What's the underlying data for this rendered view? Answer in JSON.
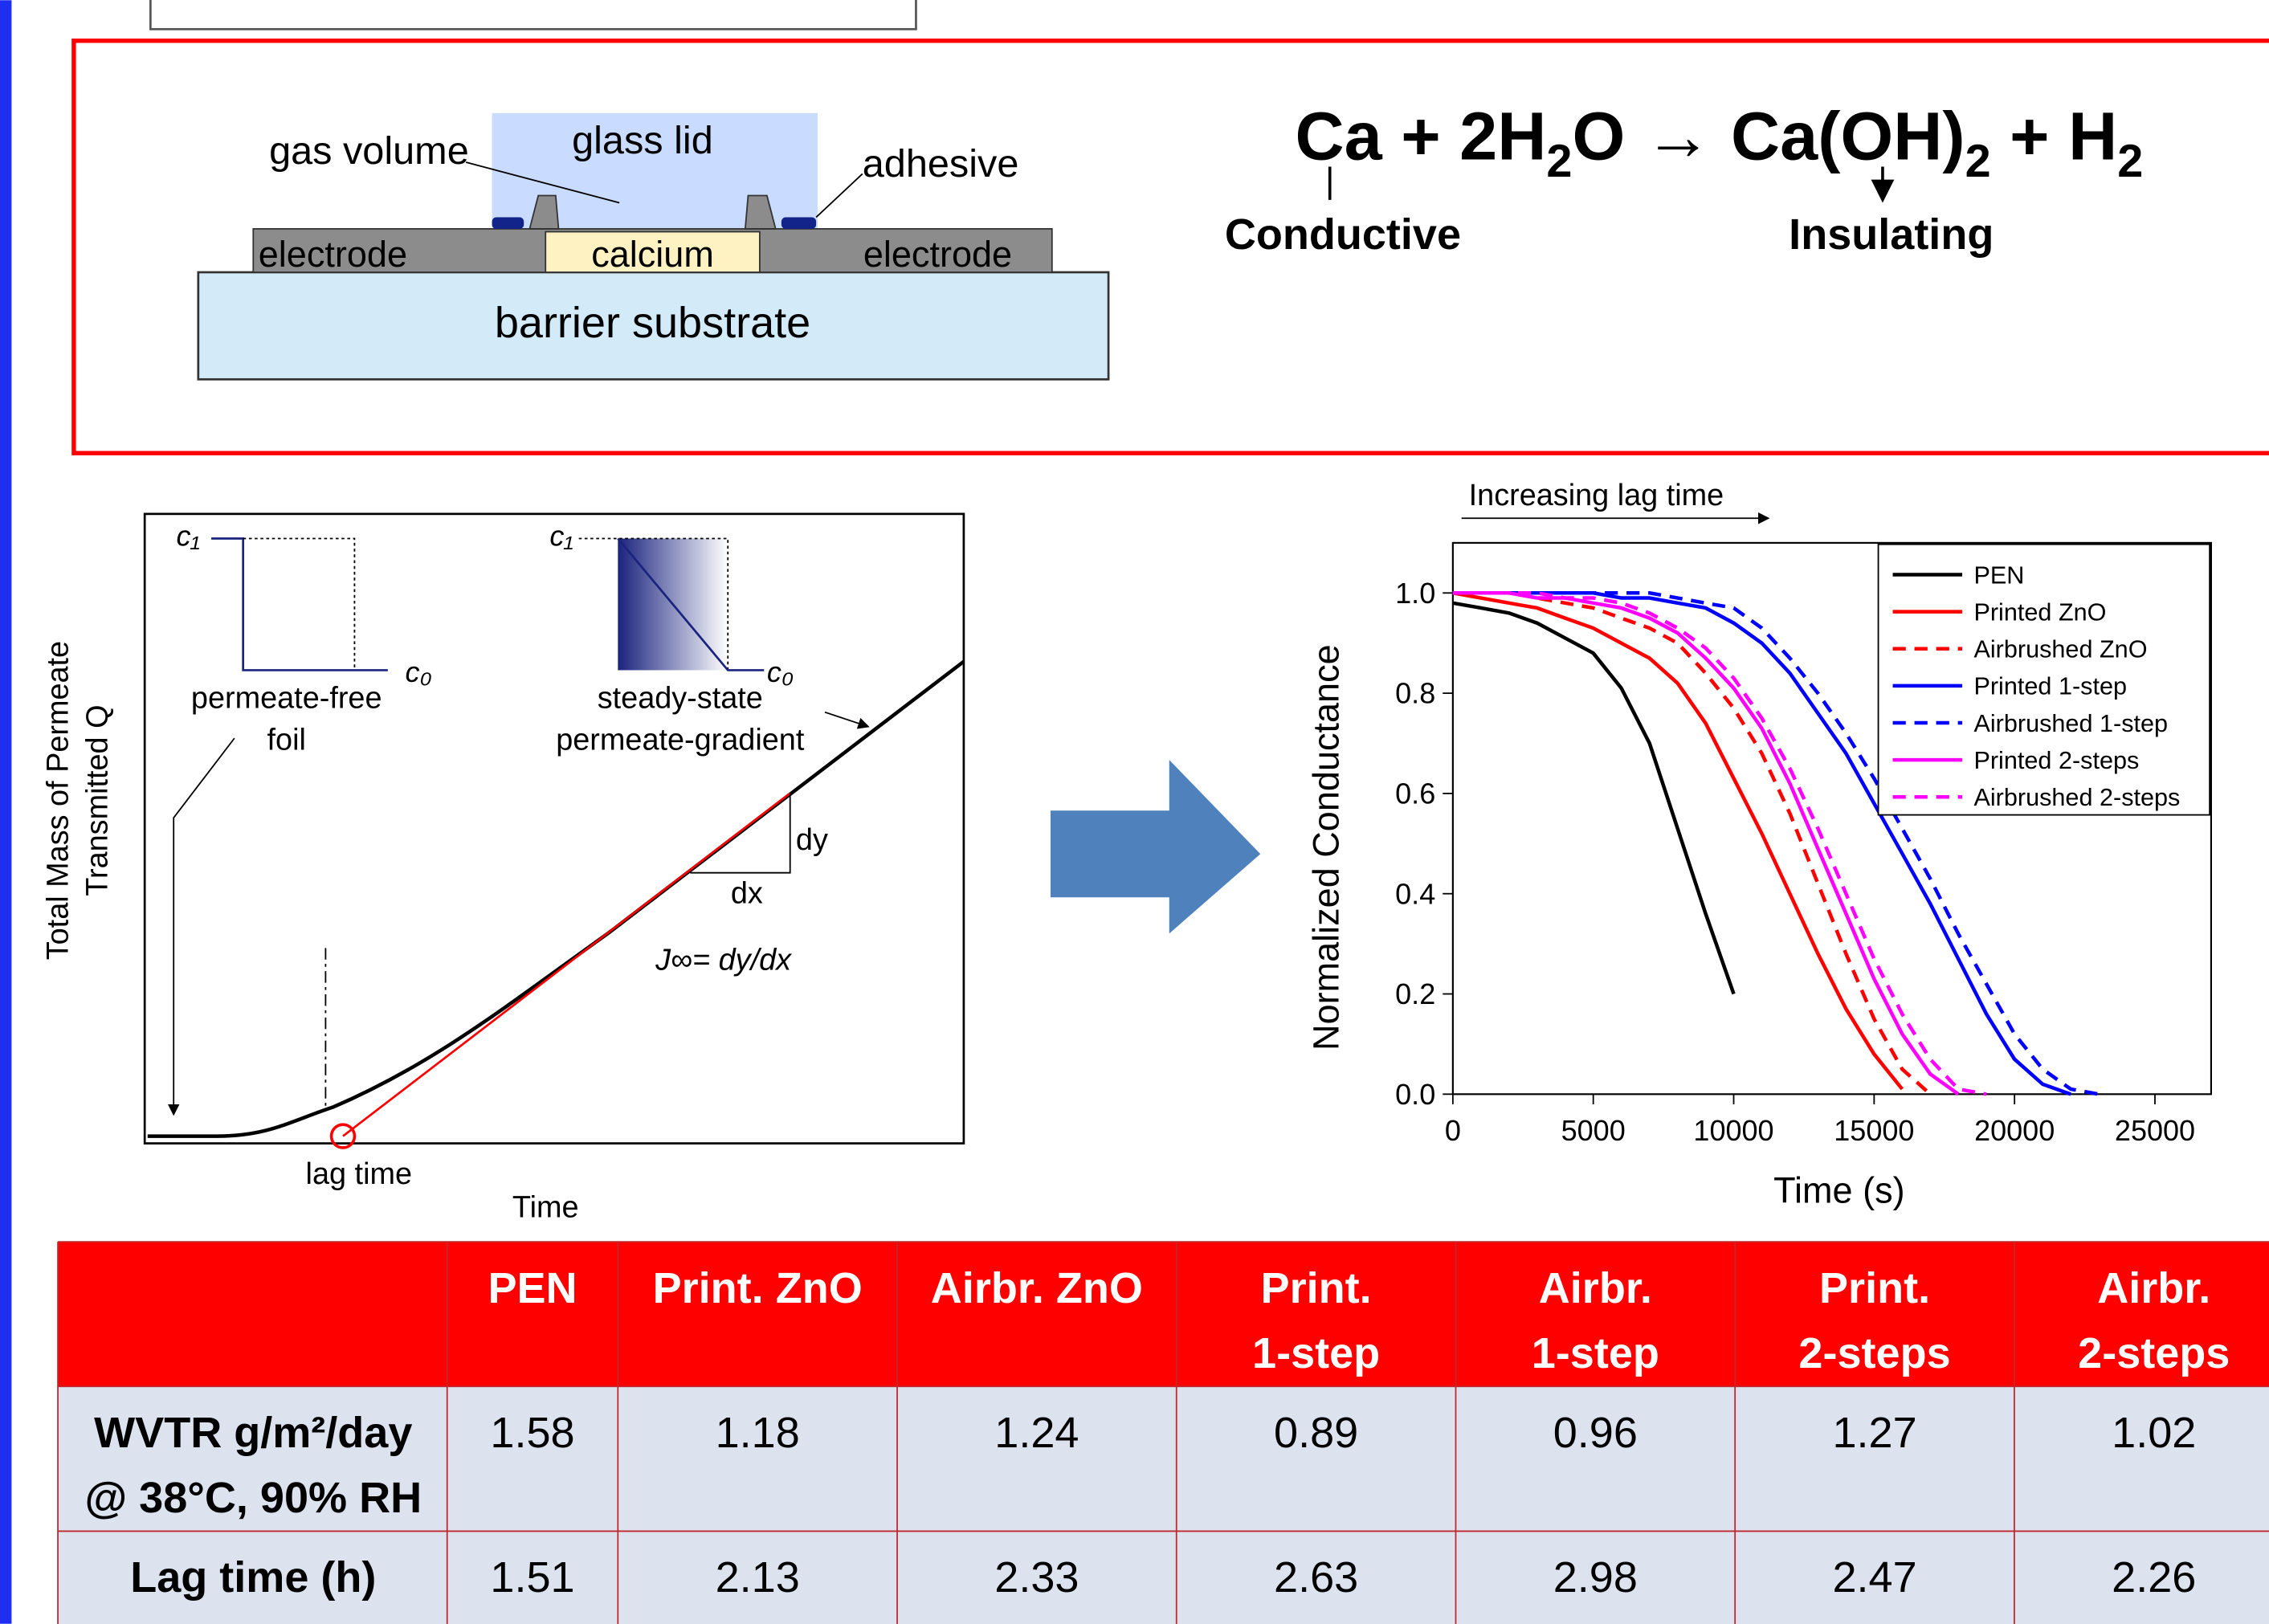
{
  "device_diagram": {
    "gas_volume": "gas volume",
    "glass_lid": "glass lid",
    "adhesive": "adhesive",
    "electrode_left": "electrode",
    "calcium": "calcium",
    "electrode_right": "electrode",
    "substrate": "barrier substrate"
  },
  "reaction": {
    "parts": [
      "Ca + 2H",
      "2",
      "O → Ca(OH)",
      "2",
      " + H",
      "2"
    ],
    "conductive": "Conductive",
    "insulating": "Insulating"
  },
  "lag_diagram": {
    "y_label": [
      "Total Mass of Permeate",
      "Transmitted Q"
    ],
    "x_label": "Time",
    "c1_left": "c₁",
    "c0_left": "c₀",
    "c1_right": "c₁",
    "c0_right": "c₀",
    "foil_label": [
      "permeate-free",
      "foil"
    ],
    "gradient_label": [
      "steady-state",
      "permeate-gradient"
    ],
    "dy": "dy",
    "dx": "dx",
    "flux": "J∞= dy/dx",
    "lag_time": "lag time"
  },
  "chart_data": {
    "type": "line",
    "annotation": "Increasing lag time",
    "xlabel": "Time (s)",
    "ylabel": "Normalized Conductance",
    "x": [
      0,
      1000,
      2000,
      3000,
      4000,
      5000,
      6000,
      7000,
      8000,
      9000,
      10000,
      11000,
      12000,
      13000,
      14000,
      15000,
      16000,
      17000,
      18000,
      19000,
      20000,
      21000,
      22000,
      23000
    ],
    "xlim": [
      0,
      27000
    ],
    "xticks": [
      0,
      5000,
      10000,
      15000,
      20000,
      25000
    ],
    "ylim": [
      0,
      1.1
    ],
    "yticks": [
      {
        "value": 0,
        "label": "0.0"
      },
      {
        "value": 0.2,
        "label": "0.2"
      },
      {
        "value": 0.4,
        "label": "0.4"
      },
      {
        "value": 0.6,
        "label": "0.6"
      },
      {
        "value": 0.8,
        "label": "0.8"
      },
      {
        "value": 1,
        "label": "1.0"
      }
    ],
    "legend": "top-right",
    "series": [
      {
        "name": "PEN",
        "color": "#000000",
        "style": "solid",
        "values": [
          0.98,
          0.97,
          0.96,
          0.94,
          0.91,
          0.88,
          0.81,
          0.7,
          0.53,
          0.36,
          0.2,
          null,
          null,
          null,
          null,
          null,
          null,
          null,
          null,
          null,
          null,
          null,
          null,
          null
        ]
      },
      {
        "name": "Printed ZnO",
        "color": "#ff0000",
        "style": "solid",
        "values": [
          1.0,
          0.99,
          0.98,
          0.97,
          0.95,
          0.93,
          0.9,
          0.87,
          0.82,
          0.74,
          0.63,
          0.52,
          0.4,
          0.28,
          0.17,
          0.08,
          0.01,
          null,
          null,
          null,
          null,
          null,
          null,
          null
        ]
      },
      {
        "name": "Airbrushed ZnO",
        "color": "#ff0000",
        "style": "dashed",
        "values": [
          1.0,
          1.0,
          1.0,
          0.99,
          0.98,
          0.97,
          0.95,
          0.93,
          0.9,
          0.84,
          0.77,
          0.68,
          0.56,
          0.42,
          0.28,
          0.15,
          0.05,
          0.0,
          null,
          null,
          null,
          null,
          null,
          null
        ]
      },
      {
        "name": "Printed 1-step",
        "color": "#0000ff",
        "style": "solid",
        "values": [
          1.0,
          1.0,
          1.0,
          1.0,
          1.0,
          1.0,
          0.99,
          0.99,
          0.98,
          0.97,
          0.94,
          0.9,
          0.84,
          0.76,
          0.68,
          0.58,
          0.48,
          0.38,
          0.27,
          0.16,
          0.07,
          0.02,
          0.0,
          null
        ]
      },
      {
        "name": "Airbrushed 1-step",
        "color": "#0000ff",
        "style": "dashed",
        "values": [
          1.0,
          1.0,
          1.0,
          1.0,
          1.0,
          1.0,
          1.0,
          1.0,
          0.99,
          0.98,
          0.97,
          0.93,
          0.87,
          0.8,
          0.72,
          0.63,
          0.53,
          0.43,
          0.32,
          0.22,
          0.12,
          0.05,
          0.01,
          0.0
        ]
      },
      {
        "name": "Printed 2-steps",
        "color": "#ff00ff",
        "style": "solid",
        "values": [
          1.0,
          1.0,
          1.0,
          0.99,
          0.99,
          0.98,
          0.97,
          0.95,
          0.92,
          0.87,
          0.81,
          0.73,
          0.62,
          0.49,
          0.36,
          0.23,
          0.12,
          0.04,
          0.0,
          null,
          null,
          null,
          null,
          null
        ]
      },
      {
        "name": "Airbrushed 2-steps",
        "color": "#ff00ff",
        "style": "dashed",
        "values": [
          1.0,
          1.0,
          1.0,
          1.0,
          0.99,
          0.99,
          0.98,
          0.96,
          0.93,
          0.89,
          0.83,
          0.75,
          0.65,
          0.53,
          0.4,
          0.27,
          0.16,
          0.07,
          0.01,
          0.0,
          null,
          null,
          null,
          null
        ]
      }
    ]
  },
  "table": {
    "header": [
      [
        "PEN"
      ],
      [
        "Print. ZnO"
      ],
      [
        "Airbr. ZnO"
      ],
      [
        "Print.",
        "1-step"
      ],
      [
        "Airbr.",
        "1-step"
      ],
      [
        "Print.",
        "2-steps"
      ],
      [
        "Airbr.",
        "2-steps"
      ]
    ],
    "rows": [
      {
        "label": [
          "WVTR g/m²/day",
          "@ 38°C, 90% RH"
        ],
        "values": [
          1.58,
          1.18,
          1.24,
          0.89,
          0.96,
          1.27,
          1.02
        ]
      },
      {
        "label": [
          "Lag time (h)"
        ],
        "values": [
          1.51,
          2.13,
          2.33,
          2.63,
          2.98,
          2.47,
          2.26
        ]
      }
    ]
  }
}
